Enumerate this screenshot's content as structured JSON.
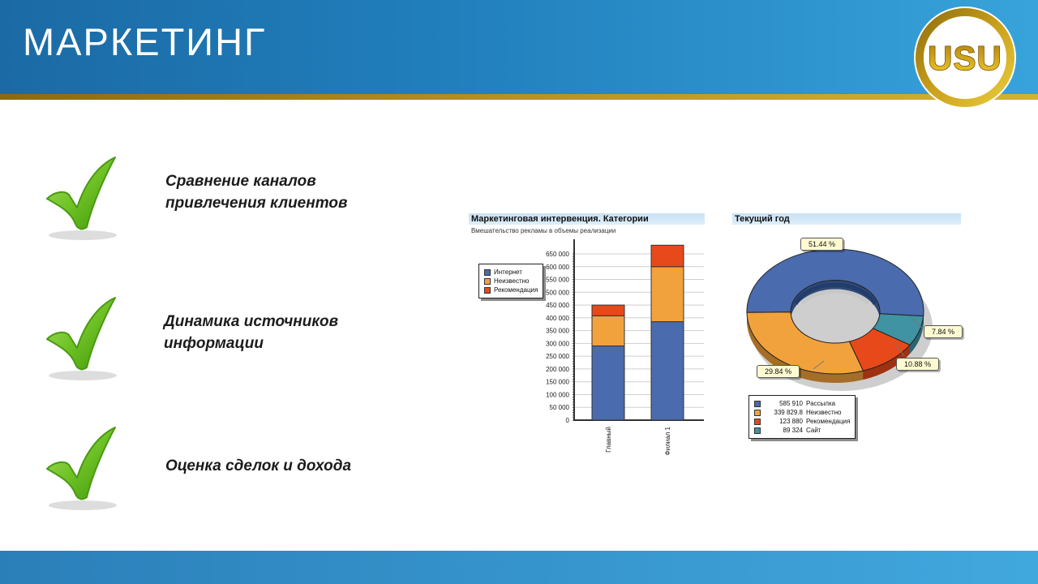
{
  "header": {
    "title": "МАРКЕТИНГ",
    "logo_text": "USU"
  },
  "colors": {
    "header_blue_left": "#1b6aa5",
    "header_blue_right": "#38a3da",
    "gold_line": "#c09b22",
    "footer_blue": "#2b7fb9",
    "check_green": "#5cb815",
    "chart_titlebar_blue": "#c9e1f5"
  },
  "checklist": [
    {
      "line1": "Сравнение каналов",
      "line2": "привлечения клиентов"
    },
    {
      "line1": "Динамика источников",
      "line2": "информации"
    },
    {
      "line1": "Оценка сделок и дохода",
      "line2": ""
    }
  ],
  "chart_data": [
    {
      "type": "bar",
      "stacked": true,
      "title": "Маркетинговая интервенция. Категории",
      "subtitle": "Вмешательство рекламы в объемы реализации",
      "categories": [
        "Главный",
        "Филиал 1"
      ],
      "series": [
        {
          "name": "Интернет",
          "color": "#4a6bad",
          "values": [
            290000,
            385000
          ]
        },
        {
          "name": "Неизвестно",
          "color": "#f2a23c",
          "values": [
            118000,
            215000
          ]
        },
        {
          "name": "Рекомендация",
          "color": "#e8491a",
          "values": [
            42000,
            84000
          ]
        }
      ],
      "ylabel": "",
      "xlabel": "",
      "ylim": [
        0,
        690000
      ],
      "yticks": [
        "0",
        "50 000",
        "100 000",
        "150 000",
        "200 000",
        "250 000",
        "300 000",
        "350 000",
        "400 000",
        "450 000",
        "500 000",
        "550 000",
        "600 000",
        "650 000"
      ],
      "grid": true,
      "legend_position": "left"
    },
    {
      "type": "pie",
      "donut": true,
      "title": "Текущий год",
      "slices": [
        {
          "label": "Рассылка",
          "value": "585 910",
          "pct": 51.44,
          "pct_label": "51.44 %",
          "color": "#4a6bad"
        },
        {
          "label": "Неизвестно",
          "value": "339 829.8",
          "pct": 29.84,
          "pct_label": "29.84 %",
          "color": "#f2a23c"
        },
        {
          "label": "Рекомендация",
          "value": "123 880",
          "pct": 10.88,
          "pct_label": "10.88 %",
          "color": "#e8491a"
        },
        {
          "label": "Сайт",
          "value": "89 324",
          "pct": 7.84,
          "pct_label": "7.84 %",
          "color": "#3f93a3"
        }
      ],
      "legend_position": "bottom"
    }
  ]
}
